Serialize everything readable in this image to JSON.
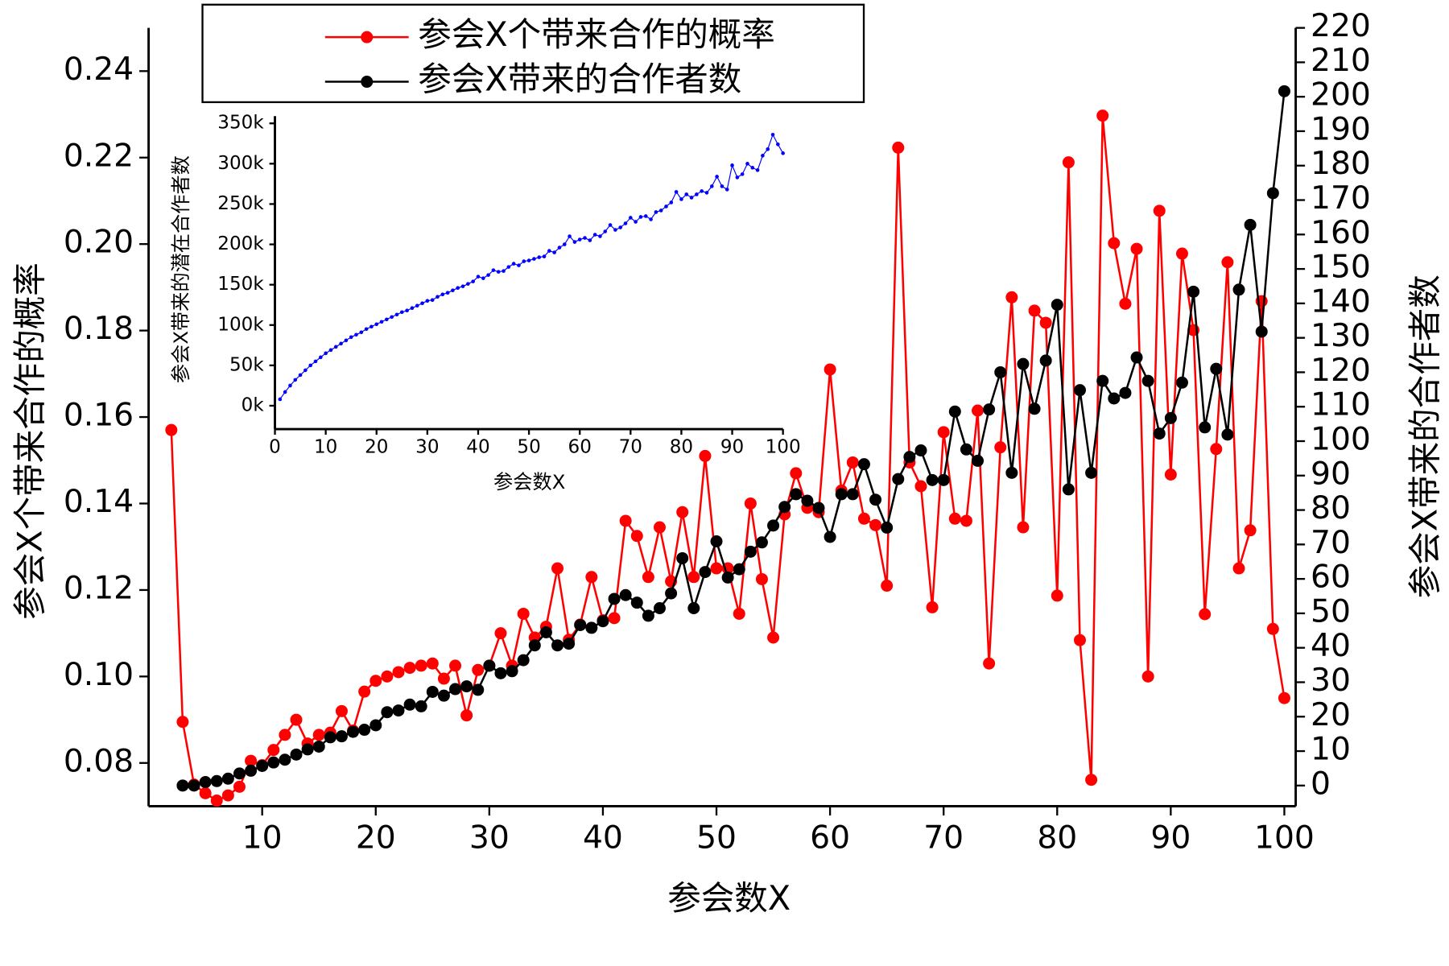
{
  "chart_data": [
    {
      "type": "line",
      "xlabel": "参会数X",
      "ylabel": "参会X个带来合作的概率",
      "y2label": "参会X带来的合作者数",
      "xlim": [
        0,
        101
      ],
      "xticks": [
        10,
        20,
        30,
        40,
        50,
        60,
        70,
        80,
        90,
        100
      ],
      "ylim": [
        0.07,
        0.25
      ],
      "yticks": [
        0.08,
        {
          "value": 0.1,
          "label": "0.10"
        },
        0.12,
        0.14,
        0.16,
        0.18,
        {
          "value": 0.2,
          "label": "0.20"
        },
        0.22,
        0.24
      ],
      "y2lim": [
        -6,
        220
      ],
      "y2ticks": [
        0,
        10,
        20,
        30,
        40,
        50,
        60,
        70,
        80,
        90,
        100,
        110,
        120,
        130,
        140,
        150,
        160,
        170,
        180,
        190,
        200,
        210,
        220
      ],
      "legend": "upper center",
      "series": [
        {
          "name": "参会X个带来合作的概率",
          "color": "#ff0000",
          "x": [
            2,
            3,
            4,
            5,
            6,
            7,
            8,
            9,
            10,
            11,
            12,
            13,
            14,
            15,
            16,
            17,
            18,
            19,
            20,
            21,
            22,
            23,
            24,
            25,
            26,
            27,
            28,
            29,
            30,
            31,
            32,
            33,
            34,
            35,
            36,
            37,
            38,
            39,
            40,
            41,
            42,
            43,
            44,
            45,
            46,
            47,
            48,
            49,
            50,
            51,
            52,
            53,
            54,
            55,
            56,
            57,
            58,
            59,
            60,
            61,
            62,
            63,
            64,
            65,
            66,
            67,
            68,
            69,
            70,
            71,
            72,
            73,
            74,
            75,
            76,
            77,
            78,
            79,
            80,
            81,
            82,
            83,
            84,
            85,
            86,
            87,
            88,
            89,
            90,
            91,
            92,
            93,
            94,
            95,
            96,
            97,
            98,
            99,
            100
          ],
          "values": [
            0.157,
            0.0895,
            0.075,
            0.073,
            0.0713,
            0.0725,
            0.0745,
            0.0805,
            0.0795,
            0.083,
            0.0865,
            0.09,
            0.0845,
            0.0865,
            0.087,
            0.092,
            0.0875,
            0.0965,
            0.099,
            0.1,
            0.101,
            0.102,
            0.1025,
            0.103,
            0.0995,
            0.1025,
            0.091,
            0.1015,
            0.1025,
            0.11,
            0.1025,
            0.1145,
            0.109,
            0.1115,
            0.125,
            0.1085,
            0.112,
            0.123,
            0.113,
            0.1135,
            0.136,
            0.1325,
            0.123,
            0.1345,
            0.122,
            0.138,
            0.123,
            0.151,
            0.125,
            0.125,
            0.1145,
            0.14,
            0.1225,
            0.109,
            0.1375,
            0.147,
            0.139,
            0.138,
            0.171,
            0.143,
            0.1495,
            0.1365,
            0.135,
            0.121,
            0.2223,
            0.1495,
            0.144,
            0.116,
            0.1565,
            0.1365,
            0.136,
            0.1615,
            0.103,
            0.153,
            0.1877,
            0.1345,
            0.1846,
            0.1818,
            0.1187,
            0.2189,
            0.1084,
            0.0761,
            0.2297,
            0.2002,
            0.1862,
            0.1989,
            0.1,
            0.2077,
            0.1467,
            0.1978,
            0.1801,
            0.1144,
            0.1526,
            0.1958,
            0.125,
            0.1338,
            0.1868,
            0.111,
            0.095
          ]
        },
        {
          "name": "参会X带来的合作者数",
          "color": "#000000",
          "axis": "y2",
          "x": [
            3,
            4,
            5,
            6,
            7,
            8,
            9,
            10,
            11,
            12,
            13,
            14,
            15,
            16,
            17,
            18,
            19,
            20,
            21,
            22,
            23,
            24,
            25,
            26,
            27,
            28,
            29,
            30,
            31,
            32,
            33,
            34,
            35,
            36,
            37,
            38,
            39,
            40,
            41,
            42,
            43,
            44,
            45,
            46,
            47,
            48,
            49,
            50,
            51,
            52,
            53,
            54,
            55,
            56,
            57,
            58,
            59,
            60,
            61,
            62,
            63,
            64,
            65,
            66,
            67,
            68,
            69,
            70,
            71,
            72,
            73,
            74,
            75,
            76,
            77,
            78,
            79,
            80,
            81,
            82,
            83,
            84,
            85,
            86,
            87,
            88,
            89,
            90,
            91,
            92,
            93,
            94,
            95,
            96,
            97,
            98,
            99,
            100
          ],
          "values": [
            0,
            0,
            1,
            1.3,
            2,
            3.5,
            4.3,
            5.7,
            6.7,
            7.5,
            9,
            10.5,
            11.3,
            14,
            14.3,
            15.6,
            16.2,
            17.5,
            21.3,
            21.8,
            23.5,
            23,
            27.2,
            26.1,
            28,
            28.8,
            27.8,
            34.8,
            32.6,
            33.2,
            36.4,
            40.7,
            44.5,
            40.7,
            41.2,
            46.6,
            45.8,
            47.7,
            54.2,
            55.3,
            53.1,
            49.3,
            51.5,
            55.8,
            66,
            51.5,
            62,
            70.9,
            60.4,
            62.8,
            67.9,
            70.6,
            75.5,
            80.9,
            84.6,
            82.7,
            80.6,
            72.2,
            84.6,
            84.6,
            93.3,
            83,
            74.9,
            89,
            95.4,
            97.3,
            88.7,
            88.7,
            108.6,
            97.6,
            94.3,
            109.2,
            120,
            90.8,
            122.4,
            109.4,
            123.4,
            139.6,
            86,
            114.8,
            90.8,
            117.5,
            112.4,
            114,
            124.3,
            117.5,
            102.2,
            106.7,
            117,
            143.4,
            104,
            121,
            101.9,
            144,
            162.8,
            131.8,
            172,
            201.6
          ]
        }
      ]
    },
    {
      "type": "line",
      "xlabel": "参会数X",
      "ylabel": "参会X带来的潜在合作者数",
      "xlim": [
        0,
        100
      ],
      "xticks": [
        0,
        10,
        20,
        30,
        40,
        50,
        60,
        70,
        80,
        90,
        100
      ],
      "ylim": [
        -29000,
        359000
      ],
      "yticks": [
        {
          "value": 0,
          "label": "0k"
        },
        {
          "value": 50000,
          "label": "50k"
        },
        {
          "value": 100000,
          "label": "100k"
        },
        {
          "value": 150000,
          "label": "150k"
        },
        {
          "value": 200000,
          "label": "200k"
        },
        {
          "value": 250000,
          "label": "250k"
        },
        {
          "value": 300000,
          "label": "300k"
        },
        {
          "value": 350000,
          "label": "350k"
        }
      ],
      "series": [
        {
          "color": "#0000ff",
          "x": [
            1,
            2,
            3,
            4,
            5,
            6,
            7,
            8,
            9,
            10,
            11,
            12,
            13,
            14,
            15,
            16,
            17,
            18,
            19,
            20,
            21,
            22,
            23,
            24,
            25,
            26,
            27,
            28,
            29,
            30,
            31,
            32,
            33,
            34,
            35,
            36,
            37,
            38,
            39,
            40,
            41,
            42,
            43,
            44,
            45,
            46,
            47,
            48,
            49,
            50,
            51,
            52,
            53,
            54,
            55,
            56,
            57,
            58,
            59,
            60,
            61,
            62,
            63,
            64,
            65,
            66,
            67,
            68,
            69,
            70,
            71,
            72,
            73,
            74,
            75,
            76,
            77,
            78,
            79,
            80,
            81,
            82,
            83,
            84,
            85,
            86,
            87,
            88,
            89,
            90,
            91,
            92,
            93,
            94,
            95,
            96,
            97,
            98,
            99,
            100
          ],
          "values": [
            8000,
            17000,
            25000,
            32000,
            38000,
            44000,
            50000,
            55000,
            60000,
            65000,
            69000,
            73000,
            77000,
            81000,
            85000,
            88000,
            91000,
            95000,
            98000,
            101000,
            104000,
            107000,
            110000,
            113000,
            116000,
            118000,
            121000,
            124000,
            127000,
            130000,
            131000,
            135000,
            138000,
            140000,
            143000,
            146000,
            148000,
            151000,
            154000,
            160000,
            158000,
            162000,
            168000,
            166000,
            167000,
            172000,
            176000,
            174000,
            179000,
            180000,
            182000,
            184000,
            185000,
            192000,
            190000,
            196000,
            200000,
            210000,
            203000,
            206000,
            208000,
            205000,
            212000,
            210000,
            216000,
            224000,
            218000,
            221000,
            226000,
            233000,
            228000,
            234000,
            235000,
            231000,
            240000,
            242000,
            247000,
            252000,
            265000,
            256000,
            262000,
            258000,
            262000,
            266000,
            264000,
            272000,
            284000,
            272000,
            268000,
            298000,
            283000,
            287000,
            300000,
            295000,
            292000,
            310000,
            318000,
            336000,
            324000,
            313000
          ]
        }
      ]
    }
  ]
}
